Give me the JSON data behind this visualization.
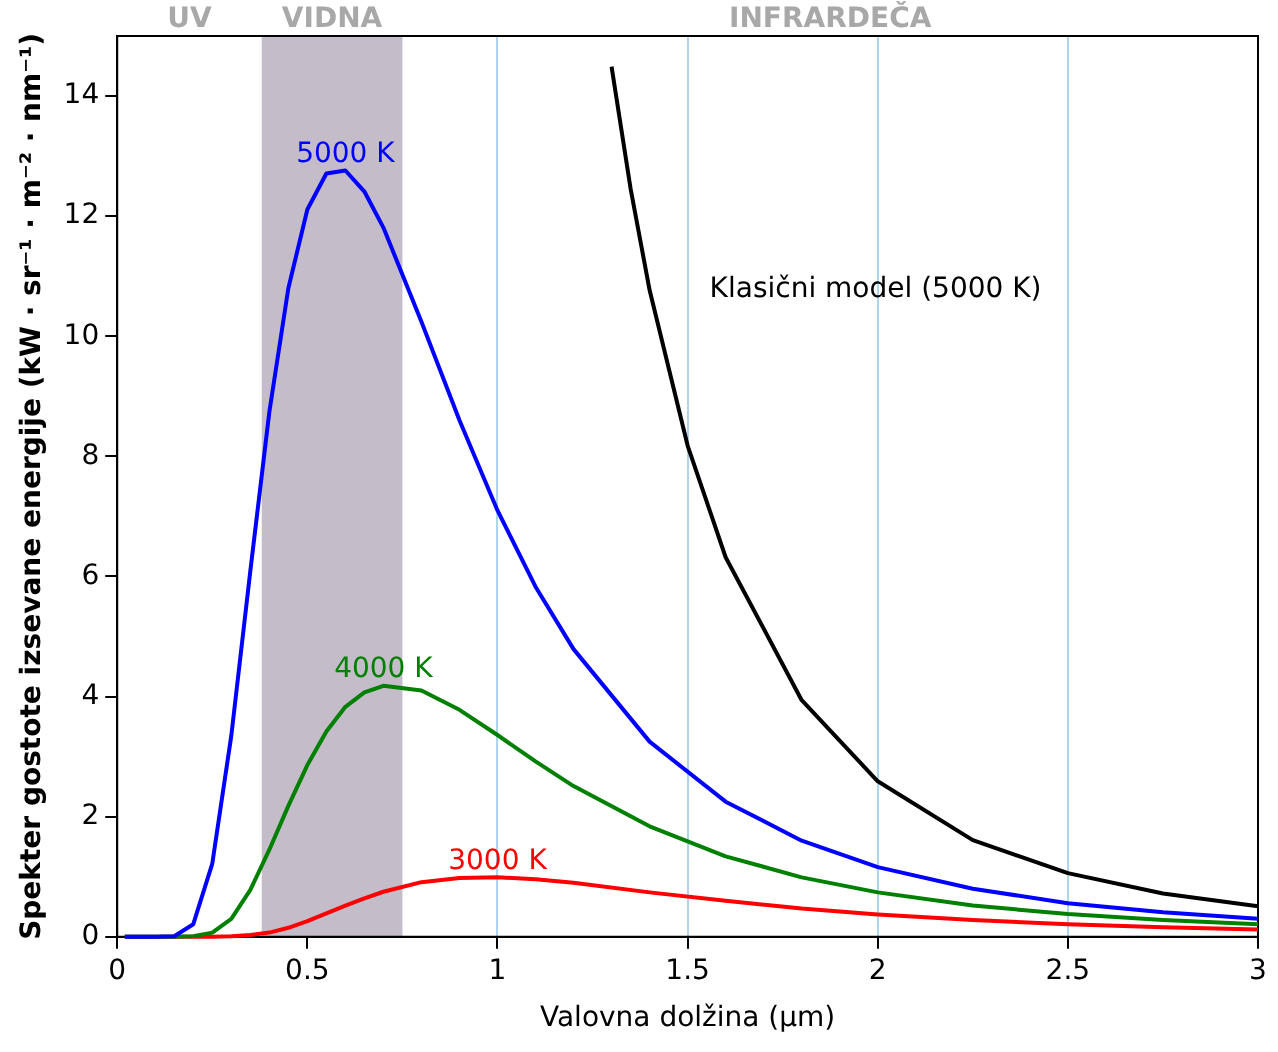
{
  "chart_data": {
    "type": "line",
    "xlabel": "Valovna dolžina (µm)",
    "ylabel": "Spekter gostote izsevane energije (kW · sr⁻¹ · m⁻² · nm⁻¹)",
    "xlim": [
      0,
      3
    ],
    "ylim": [
      0,
      15
    ],
    "xticks": [
      0,
      0.5,
      1,
      1.5,
      2,
      2.5,
      3
    ],
    "yticks": [
      0,
      2,
      4,
      6,
      8,
      10,
      12,
      14
    ],
    "grid": "x",
    "legend": false,
    "marker": "none",
    "line_style": "solid",
    "series": [
      {
        "name": "5000 K",
        "color": "#0000ff",
        "x": [
          0.02,
          0.1,
          0.15,
          0.2,
          0.25,
          0.3,
          0.35,
          0.4,
          0.45,
          0.5,
          0.55,
          0.6,
          0.65,
          0.7,
          0.8,
          0.9,
          1.0,
          1.1,
          1.2,
          1.4,
          1.6,
          1.8,
          2.0,
          2.25,
          2.5,
          2.75,
          3.0
        ],
        "values": [
          0,
          0,
          0.01,
          0.21,
          1.22,
          3.35,
          6.09,
          8.74,
          10.8,
          12.11,
          12.71,
          12.76,
          12.41,
          11.81,
          10.24,
          8.6,
          7.1,
          5.83,
          4.79,
          3.25,
          2.25,
          1.6,
          1.16,
          0.8,
          0.56,
          0.41,
          0.3
        ]
      },
      {
        "name": "4000 K",
        "color": "#008000",
        "x": [
          0.02,
          0.15,
          0.2,
          0.25,
          0.3,
          0.35,
          0.4,
          0.45,
          0.5,
          0.55,
          0.6,
          0.65,
          0.7,
          0.8,
          0.9,
          1.0,
          1.1,
          1.2,
          1.4,
          1.6,
          1.8,
          2.0,
          2.25,
          2.5,
          2.75,
          3.0
        ],
        "values": [
          0,
          0,
          0.01,
          0.07,
          0.3,
          0.78,
          1.45,
          2.18,
          2.86,
          3.42,
          3.83,
          4.07,
          4.18,
          4.1,
          3.78,
          3.36,
          2.92,
          2.51,
          1.84,
          1.34,
          0.99,
          0.74,
          0.52,
          0.38,
          0.28,
          0.21
        ]
      },
      {
        "name": "3000 K",
        "color": "#ff0000",
        "x": [
          0.02,
          0.25,
          0.3,
          0.35,
          0.4,
          0.45,
          0.5,
          0.55,
          0.6,
          0.65,
          0.7,
          0.8,
          0.9,
          1.0,
          1.1,
          1.2,
          1.4,
          1.6,
          1.8,
          2.0,
          2.25,
          2.5,
          2.75,
          3.0
        ],
        "values": [
          0,
          0,
          0.01,
          0.03,
          0.07,
          0.15,
          0.26,
          0.39,
          0.52,
          0.64,
          0.75,
          0.91,
          0.98,
          0.99,
          0.96,
          0.9,
          0.74,
          0.6,
          0.47,
          0.37,
          0.28,
          0.21,
          0.16,
          0.12
        ]
      },
      {
        "name": "Klasični model (5000 K)",
        "color": "#000000",
        "x": [
          1.3,
          1.35,
          1.4,
          1.5,
          1.6,
          1.8,
          2.0,
          2.25,
          2.5,
          2.75,
          3.0
        ],
        "values": [
          14.49,
          12.46,
          10.77,
          8.18,
          6.32,
          3.94,
          2.59,
          1.61,
          1.06,
          0.72,
          0.51
        ]
      }
    ],
    "bands": [
      {
        "axis": "x",
        "from": 0.38,
        "to": 0.75,
        "label": "VIDNA",
        "color": "#c4bcc8"
      }
    ],
    "annotations": [
      "UV",
      "INFRARDEČA"
    ]
  }
}
